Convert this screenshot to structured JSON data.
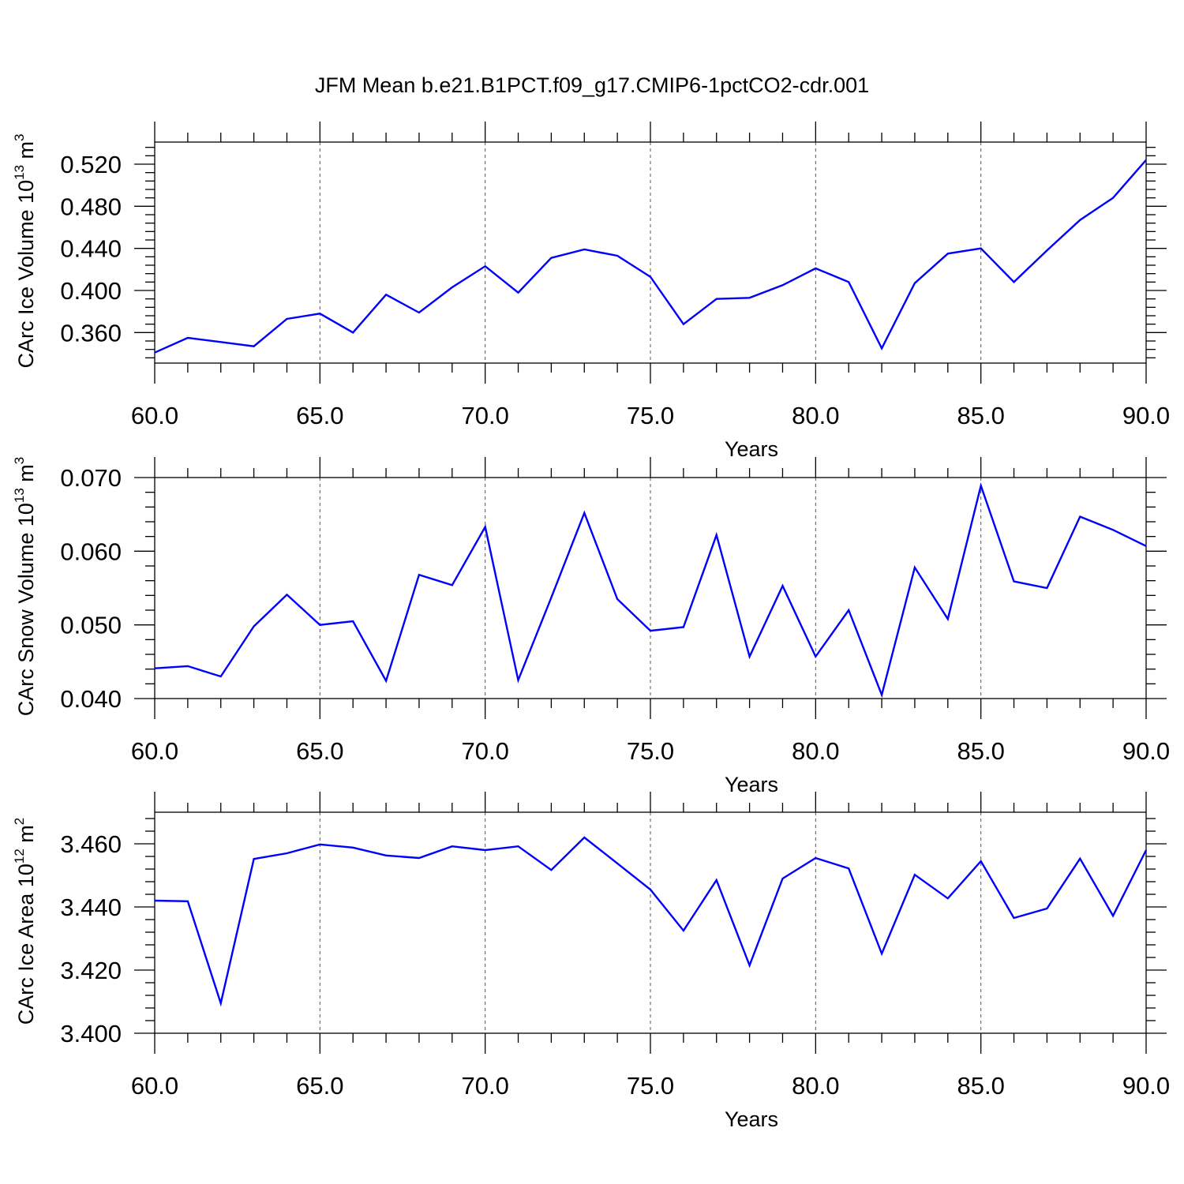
{
  "figure": {
    "title": "JFM Mean b.e21.B1PCT.f09_g17.CMIP6-1pctCO2-cdr.001"
  },
  "colors": {
    "line": "#0000ff",
    "axis": "#000000",
    "grid": "#555555"
  },
  "chart_data": [
    {
      "type": "line",
      "title": "",
      "xlabel": "Years",
      "ylabel": {
        "text": "CArc Ice Volume 10",
        "exponent": "13",
        "unit": " m",
        "unit_exponent": "3"
      },
      "xlim": [
        60,
        90
      ],
      "ylim": [
        0.331,
        0.541
      ],
      "x_ticks": [
        60,
        65,
        70,
        75,
        80,
        85,
        90
      ],
      "x_tick_labels": [
        "60.0",
        "65.0",
        "70.0",
        "75.0",
        "80.0",
        "85.0",
        "90.0"
      ],
      "y_ticks": [
        0.36,
        0.4,
        0.44,
        0.48,
        0.52
      ],
      "y_tick_labels": [
        "0.360",
        "0.400",
        "0.440",
        "0.480",
        "0.520"
      ],
      "grid": "x-dashed",
      "x": [
        60,
        61,
        62,
        63,
        64,
        65,
        66,
        67,
        68,
        69,
        70,
        71,
        72,
        73,
        74,
        75,
        76,
        77,
        78,
        79,
        80,
        81,
        82,
        83,
        84,
        85,
        86,
        87,
        88,
        89,
        90
      ],
      "values": [
        0.341,
        0.355,
        0.351,
        0.347,
        0.373,
        0.378,
        0.36,
        0.396,
        0.379,
        0.403,
        0.423,
        0.398,
        0.431,
        0.439,
        0.433,
        0.413,
        0.368,
        0.392,
        0.393,
        0.405,
        0.421,
        0.408,
        0.345,
        0.407,
        0.435,
        0.44,
        0.408,
        0.438,
        0.467,
        0.488,
        0.524
      ]
    },
    {
      "type": "line",
      "title": "",
      "xlabel": "Years",
      "ylabel": {
        "text": "CArc Snow Volume 10",
        "exponent": "13",
        "unit": " m",
        "unit_exponent": "3"
      },
      "xlim": [
        60,
        90
      ],
      "ylim": [
        0.04,
        0.07
      ],
      "x_ticks": [
        60,
        65,
        70,
        75,
        80,
        85,
        90
      ],
      "x_tick_labels": [
        "60.0",
        "65.0",
        "70.0",
        "75.0",
        "80.0",
        "85.0",
        "90.0"
      ],
      "y_ticks": [
        0.04,
        0.05,
        0.06,
        0.07
      ],
      "y_tick_labels": [
        "0.040",
        "0.050",
        "0.060",
        "0.070"
      ],
      "grid": "x-dashed",
      "x": [
        60,
        61,
        62,
        63,
        64,
        65,
        66,
        67,
        68,
        69,
        70,
        71,
        72,
        73,
        74,
        75,
        76,
        77,
        78,
        79,
        80,
        81,
        82,
        83,
        84,
        85,
        86,
        87,
        88,
        89,
        90
      ],
      "values": [
        0.0441,
        0.0444,
        0.043,
        0.0498,
        0.0541,
        0.05,
        0.0505,
        0.0424,
        0.0568,
        0.0554,
        0.0633,
        0.0425,
        0.0537,
        0.0652,
        0.0535,
        0.0492,
        0.0497,
        0.0622,
        0.0457,
        0.0553,
        0.0457,
        0.052,
        0.0405,
        0.0578,
        0.0508,
        0.0689,
        0.0559,
        0.055,
        0.0647,
        0.0629,
        0.0607
      ]
    },
    {
      "type": "line",
      "title": "",
      "xlabel": "Years",
      "ylabel": {
        "text": "CArc Ice Area 10",
        "exponent": "12",
        "unit": " m",
        "unit_exponent": "2"
      },
      "xlim": [
        60,
        90
      ],
      "ylim": [
        3.4,
        3.47
      ],
      "x_ticks": [
        60,
        65,
        70,
        75,
        80,
        85,
        90
      ],
      "x_tick_labels": [
        "60.0",
        "65.0",
        "70.0",
        "75.0",
        "80.0",
        "85.0",
        "90.0"
      ],
      "y_ticks": [
        3.4,
        3.42,
        3.44,
        3.46
      ],
      "y_tick_labels": [
        "3.400",
        "3.420",
        "3.440",
        "3.460"
      ],
      "grid": "x-dashed",
      "x": [
        60,
        61,
        62,
        63,
        64,
        65,
        66,
        67,
        68,
        69,
        70,
        71,
        72,
        73,
        74,
        75,
        76,
        77,
        78,
        79,
        80,
        81,
        82,
        83,
        84,
        85,
        86,
        87,
        88,
        89,
        90
      ],
      "values": [
        3.442,
        3.4418,
        3.4095,
        3.4552,
        3.457,
        3.4598,
        3.4588,
        3.4563,
        3.4555,
        3.4592,
        3.458,
        3.4592,
        3.4517,
        3.462,
        3.4538,
        3.4455,
        3.4325,
        3.4485,
        3.4215,
        3.449,
        3.4555,
        3.4522,
        3.4252,
        3.4502,
        3.4427,
        3.4545,
        3.4365,
        3.4395,
        3.4553,
        3.4372,
        3.458
      ]
    }
  ]
}
